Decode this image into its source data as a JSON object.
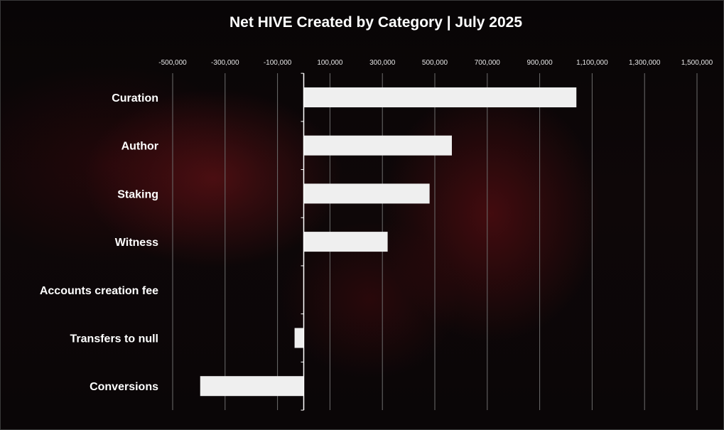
{
  "chart_data": {
    "type": "bar",
    "orientation": "horizontal",
    "title": "Net HIVE Created by Category | July 2025",
    "categories": [
      "Curation",
      "Author",
      "Staking",
      "Witness",
      "Accounts creation fee",
      "Transfers to null",
      "Conversions"
    ],
    "values": [
      1040000,
      565000,
      480000,
      320000,
      0,
      -35000,
      -395000
    ],
    "x_ticks": [
      "-500,000",
      "-300,000",
      "-100,000",
      "100,000",
      "300,000",
      "500,000",
      "700,000",
      "900,000",
      "1,100,000",
      "1,300,000",
      "1,500,000"
    ],
    "x_tick_values": [
      -500000,
      -300000,
      -100000,
      100000,
      300000,
      500000,
      700000,
      900000,
      1100000,
      1300000,
      1500000
    ],
    "xlim": [
      -500000,
      1500000
    ],
    "xlabel": "",
    "ylabel": "",
    "grid": true,
    "legend": "none",
    "bar_color": "#efefef",
    "grid_color": "#6e6e6e",
    "axis_color": "#ffffff",
    "text_color": "#ffffff"
  }
}
